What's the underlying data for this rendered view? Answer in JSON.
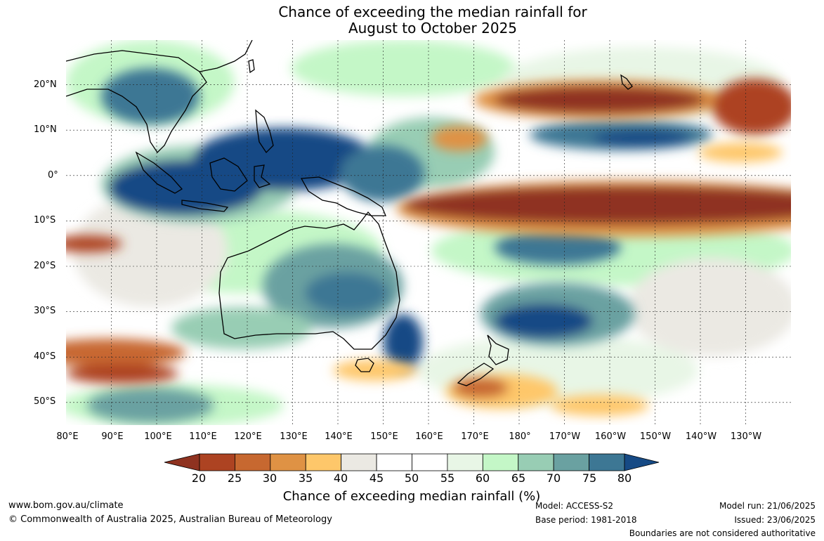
{
  "title_line1": "Chance of exceeding the median rainfall for",
  "title_line2": "August to October 2025",
  "lat_labels": [
    "20°N",
    "10°N",
    "0°",
    "10°S",
    "20°S",
    "30°S",
    "40°S",
    "50°S"
  ],
  "lon_labels": [
    "80°E",
    "90°E",
    "100°E",
    "110°E",
    "120°E",
    "130°E",
    "140°E",
    "150°E",
    "160°E",
    "170°E",
    "180°",
    "170°W",
    "160°W",
    "150°W",
    "140°W",
    "130°W"
  ],
  "colorbar": {
    "ticks": [
      "20",
      "25",
      "30",
      "35",
      "40",
      "45",
      "50",
      "55",
      "60",
      "65",
      "70",
      "75",
      "80"
    ],
    "colors": [
      "#8f3220",
      "#ad4322",
      "#c76830",
      "#df9244",
      "#fec76a",
      "#ebe9e3",
      "#ffffff",
      "#ffffff",
      "#e8f6e6",
      "#c4f7c7",
      "#98cdb4",
      "#6aa1a1",
      "#3d7794",
      "#164a85"
    ],
    "label": "Chance of exceeding median rainfall (%)"
  },
  "footer": {
    "url": "www.bom.gov.au/climate",
    "copyright": "© Commonwealth of Australia 2025, Australian Bureau of Meteorology",
    "model": "Model: ACCESS-S2",
    "base_period": "Base period: 1981-2018",
    "model_run": "Model run: 21/06/2025",
    "issued": "Issued: 23/06/2025",
    "disclaimer": "Boundaries are not considered authoritative"
  }
}
